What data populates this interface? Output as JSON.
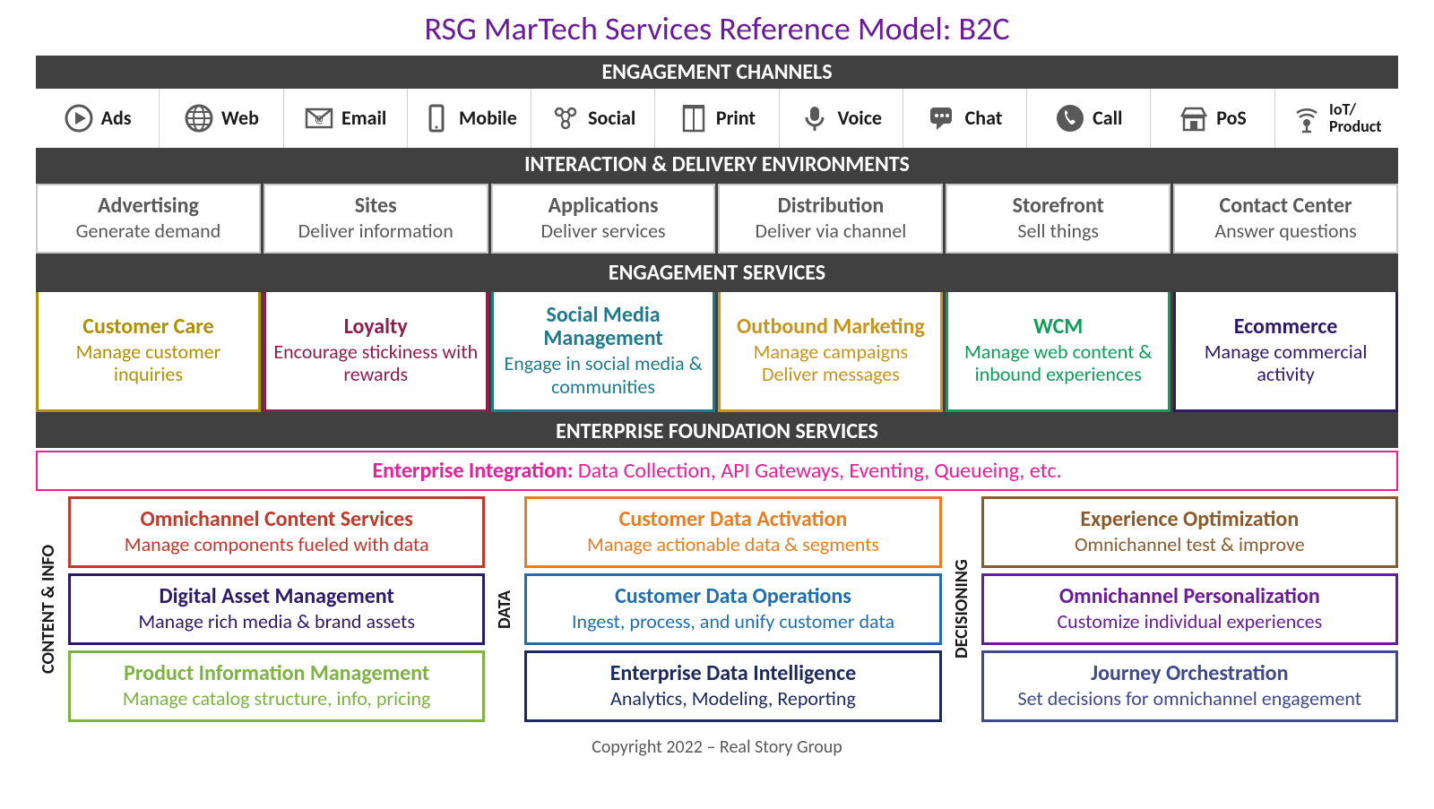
{
  "title": {
    "text": "RSG MarTech Services Reference Model: B2C",
    "color": "#6a1b9a"
  },
  "bands": {
    "channels": "ENGAGEMENT CHANNELS",
    "environments": "INTERACTION & DELIVERY ENVIRONMENTS",
    "services": "ENGAGEMENT SERVICES",
    "foundation": "ENTERPRISE FOUNDATION SERVICES"
  },
  "channels": [
    {
      "id": "ads",
      "label": "Ads",
      "icon": "play"
    },
    {
      "id": "web",
      "label": "Web",
      "icon": "globe"
    },
    {
      "id": "email",
      "label": "Email",
      "icon": "mail-at"
    },
    {
      "id": "mobile",
      "label": "Mobile",
      "icon": "phone"
    },
    {
      "id": "social",
      "label": "Social",
      "icon": "social"
    },
    {
      "id": "print",
      "label": "Print",
      "icon": "print"
    },
    {
      "id": "voice",
      "label": "Voice",
      "icon": "mic"
    },
    {
      "id": "chat",
      "label": "Chat",
      "icon": "chat"
    },
    {
      "id": "call",
      "label": "Call",
      "icon": "call"
    },
    {
      "id": "pos",
      "label": "PoS",
      "icon": "store"
    },
    {
      "id": "iot",
      "label": "IoT/\nProduct",
      "icon": "iot",
      "small": true
    }
  ],
  "environments": [
    {
      "title": "Advertising",
      "sub": "Generate demand"
    },
    {
      "title": "Sites",
      "sub": "Deliver information"
    },
    {
      "title": "Applications",
      "sub": "Deliver services"
    },
    {
      "title": "Distribution",
      "sub": "Deliver via channel"
    },
    {
      "title": "Storefront",
      "sub": "Sell things"
    },
    {
      "title": "Contact Center",
      "sub": "Answer questions"
    }
  ],
  "services": [
    {
      "title": "Customer Care",
      "sub": "Manage customer inquiries",
      "color": "#b08f00",
      "border": "#b08f00"
    },
    {
      "title": "Loyalty",
      "sub": "Encourage stickiness with rewards",
      "color": "#8e1f4a",
      "border": "#8e1f4a"
    },
    {
      "title": "Social Media Management",
      "sub": "Engage in social media & communities",
      "color": "#1f7a8c",
      "border": "#1f7a8c"
    },
    {
      "title": "Outbound Marketing",
      "sub": "Manage campaigns Deliver messages",
      "color": "#c7951c",
      "border": "#c7951c"
    },
    {
      "title": "WCM",
      "sub": "Manage web content & inbound experiences",
      "color": "#0f9d58",
      "border": "#0f9d58"
    },
    {
      "title": "Ecommerce",
      "sub": "Manage commercial activity",
      "color": "#2e1a6b",
      "border": "#2e1a6b"
    }
  ],
  "integration": {
    "label": "Enterprise Integration:",
    "label_color": "#e91e99",
    "rest": " Data Collection, API Gateways, Eventing, Queueing, etc.",
    "rest_color": "#e91e99",
    "border": "#e91e99"
  },
  "columns": [
    {
      "vlabel": "CONTENT & INFO",
      "boxes": [
        {
          "title": "Omnichannel Content Services",
          "sub": "Manage components fueled with data",
          "color": "#c0392b",
          "border": "#c0392b"
        },
        {
          "title": "Digital Asset Management",
          "sub": "Manage rich media & brand assets",
          "color": "#2e1a6b",
          "border": "#2e1a6b"
        },
        {
          "title": "Product Information Management",
          "sub": "Manage catalog structure, info, pricing",
          "color": "#7cb342",
          "border": "#7cb342"
        }
      ]
    },
    {
      "vlabel": "DATA",
      "boxes": [
        {
          "title": "Customer Data Activation",
          "sub": "Manage actionable data & segments",
          "color": "#e67e22",
          "border": "#e67e22"
        },
        {
          "title": "Customer Data Operations",
          "sub": "Ingest, process, and unify customer data",
          "color": "#1f6fb2",
          "border": "#1f6fb2"
        },
        {
          "title": "Enterprise Data Intelligence",
          "sub": "Analytics, Modeling, Reporting",
          "color": "#1a2a5e",
          "border": "#1a2a5e"
        }
      ]
    },
    {
      "vlabel": "DECISIONING",
      "boxes": [
        {
          "title": "Experience Optimization",
          "sub": "Omnichannel test & improve",
          "color": "#8b5a2b",
          "border": "#8b5a2b"
        },
        {
          "title": "Omnichannel Personalization",
          "sub": "Customize individual experiences",
          "color": "#6a1b9a",
          "border": "#6a1b9a"
        },
        {
          "title": "Journey Orchestration",
          "sub": "Set decisions for omnichannel engagement",
          "color": "#3f4a8a",
          "border": "#3f4a8a"
        }
      ]
    }
  ],
  "footer": "Copyright 2022 – Real Story Group",
  "style": {
    "band_bg": "#404040",
    "band_fg": "#ffffff",
    "env_border": "#c8c8c8",
    "env_text": "#595959",
    "channel_icon_color": "#595959",
    "box_border_width": 3
  }
}
